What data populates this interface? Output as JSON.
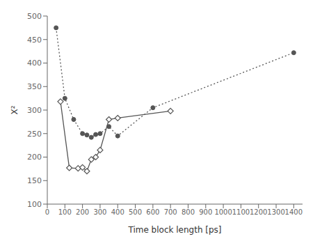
{
  "chart_data": {
    "type": "line",
    "xlabel": "Time block length [ps]",
    "ylabel": "X²",
    "xlim": [
      0,
      1450
    ],
    "ylim": [
      100,
      500
    ],
    "xticks": [
      0,
      100,
      200,
      300,
      400,
      500,
      600,
      700,
      800,
      900,
      1000,
      1100,
      1200,
      1300,
      1400
    ],
    "yticks": [
      100,
      150,
      200,
      250,
      300,
      350,
      400,
      450,
      500
    ],
    "grid": false,
    "series": [
      {
        "x": [
          50,
          100,
          150,
          200,
          225,
          250,
          275,
          300,
          350,
          400,
          600,
          1400
        ],
        "values": [
          475,
          325,
          280,
          250,
          247,
          242,
          248,
          250,
          265,
          245,
          305,
          422
        ],
        "color": "#555555",
        "marker": "circle",
        "line_style": "dotted"
      },
      {
        "x": [
          75,
          125,
          175,
          200,
          225,
          250,
          275,
          300,
          350,
          400,
          700
        ],
        "values": [
          318,
          177,
          176,
          178,
          170,
          195,
          200,
          215,
          280,
          283,
          298
        ],
        "color": "#555555",
        "marker": "diamond",
        "line_style": "solid"
      }
    ]
  }
}
